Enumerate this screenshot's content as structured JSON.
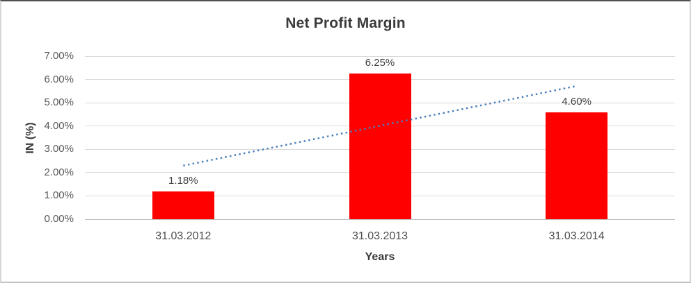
{
  "chart_data": {
    "type": "bar",
    "title": "Net Profit Margin",
    "xlabel": "Years",
    "ylabel": "IN (%)",
    "categories": [
      "31.03.2012",
      "31.03.2013",
      "31.03.2014"
    ],
    "values": [
      1.18,
      6.25,
      4.6
    ],
    "data_labels": [
      "1.18%",
      "6.25%",
      "4.60%"
    ],
    "ylim": [
      0,
      7
    ],
    "ytick_step": 1,
    "ytick_labels": [
      "0.00%",
      "1.00%",
      "2.00%",
      "3.00%",
      "4.00%",
      "5.00%",
      "6.00%",
      "7.00%"
    ],
    "grid": true,
    "legend": "none",
    "bar_color": "#ff0000",
    "trendline": {
      "type": "linear",
      "style": "dotted",
      "color": "#4a7ebb",
      "start_value": 2.3,
      "end_value": 5.72
    },
    "colors": {
      "title_text": "#3a3a3a",
      "axis_text": "#595959",
      "gridline": "#d9d9d9",
      "axis_line": "#bfbfbf",
      "background": "#ffffff"
    }
  }
}
